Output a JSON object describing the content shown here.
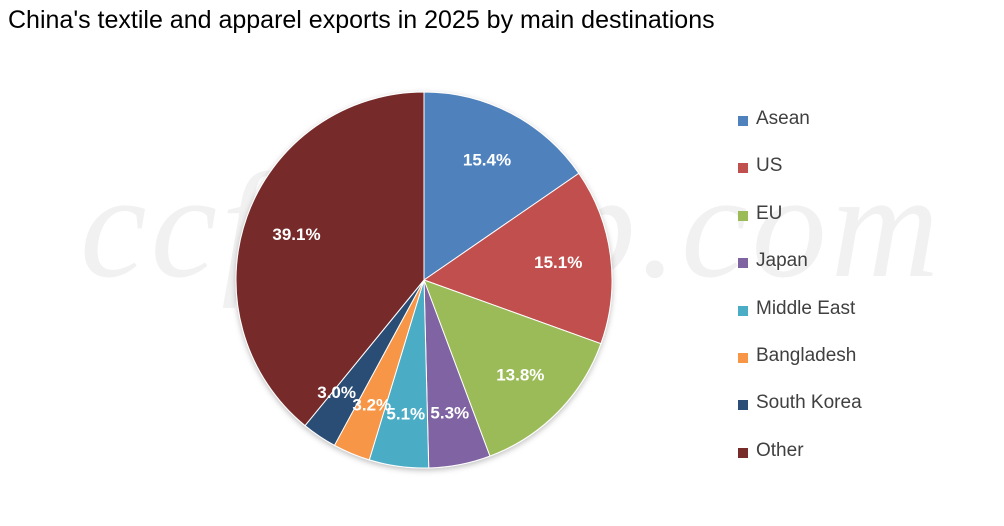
{
  "chart_data": {
    "type": "pie",
    "title": "China's textile and apparel exports in 2025 by main destinations",
    "watermark": "ccfgroup.com",
    "categories": [
      "Asean",
      "US",
      "EU",
      "Japan",
      "Middle East",
      "Bangladesh",
      "South Korea",
      "Other"
    ],
    "values": [
      15.4,
      15.1,
      13.8,
      5.3,
      5.1,
      3.2,
      3.0,
      39.1
    ],
    "data_labels": [
      "15.4%",
      "15.1%",
      "13.8%",
      "5.3%",
      "5.1%",
      "3.2%",
      "3.0%",
      "39.1%"
    ],
    "colors": [
      "#4F81BD",
      "#C0504D",
      "#9BBB59",
      "#8064A2",
      "#4BACC6",
      "#F79646",
      "#2C4D75",
      "#772C2A"
    ],
    "start_angle": "12 o'clock",
    "direction": "clockwise",
    "legend_position": "right"
  }
}
